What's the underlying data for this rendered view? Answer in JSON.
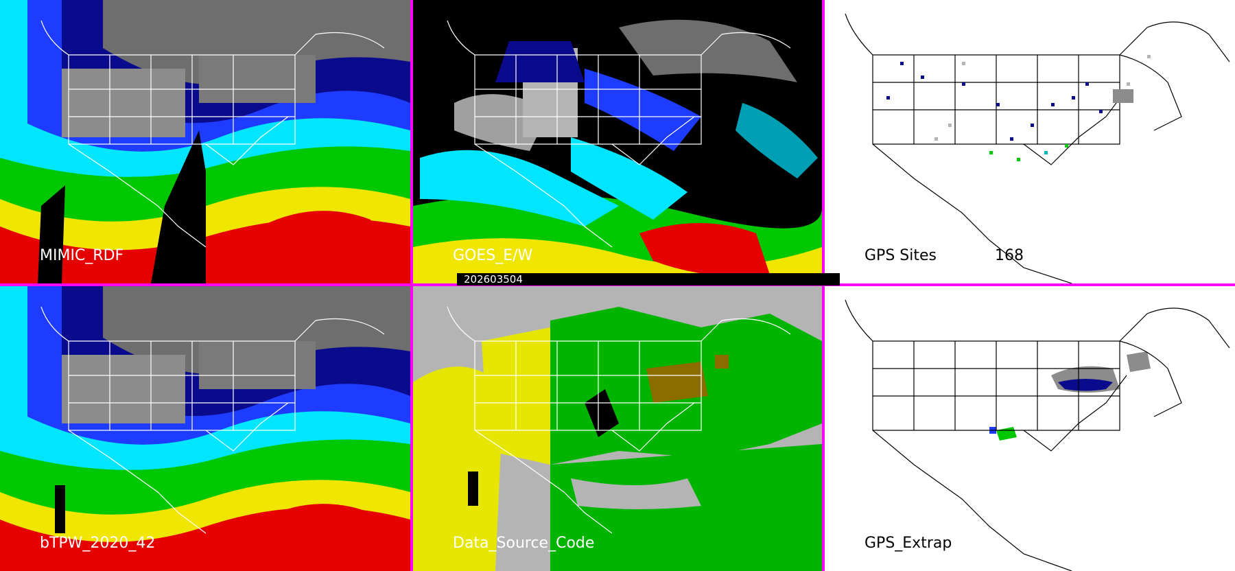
{
  "timestamp": "202603504",
  "panels": [
    {
      "id": "mimic",
      "label": "MIMIC_RDF",
      "style": "tpw"
    },
    {
      "id": "goes",
      "label": "GOES_E/W",
      "style": "goes"
    },
    {
      "id": "gps",
      "label": "GPS Sites",
      "count": "168",
      "style": "gps"
    },
    {
      "id": "btpw",
      "label": "bTPW_2020_42",
      "style": "tpw"
    },
    {
      "id": "dsc",
      "label": "Data_Source_Code",
      "style": "dsc"
    },
    {
      "id": "gpsx",
      "label": "GPS_Extrap",
      "style": "gpsx"
    }
  ],
  "colors": {
    "divider": "#ff00ff",
    "tpw_scale": [
      "#6e6e6e",
      "#0a0a8c",
      "#1e3cff",
      "#00e6ff",
      "#00c800",
      "#f0e600",
      "#e60000"
    ],
    "dsc_scale": [
      "#b4b4b4",
      "#e6e600",
      "#00b400",
      "#8c6e00",
      "#000000"
    ]
  }
}
